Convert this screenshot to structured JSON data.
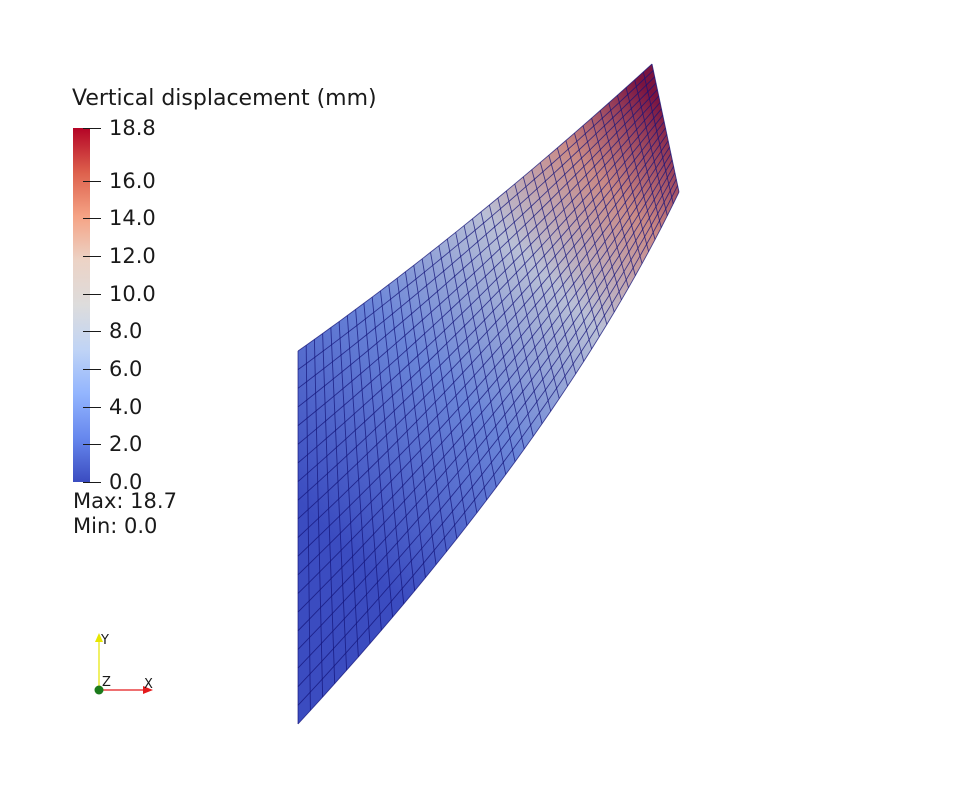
{
  "legend": {
    "title": "Vertical displacement (mm)",
    "ticks": [
      "18.8",
      "16.0",
      "14.0",
      "12.0",
      "10.0",
      "8.0",
      "6.0",
      "4.0",
      "2.0",
      "0.0"
    ],
    "colormap": [
      "#b40426",
      "#dd604c",
      "#f5a385",
      "#ecd3c6",
      "#dddcdc",
      "#c0d4f5",
      "#93b5fe",
      "#6788ee",
      "#3b4cc0"
    ],
    "max_label": "Max: 18.7",
    "min_label": "Min: 0.0"
  },
  "orientation_axes": {
    "x_label": "X",
    "y_label": "Y",
    "z_label": "Z",
    "x_color": "#e41a1c",
    "y_color": "#e6e600",
    "z_color": "#1b7a1b"
  },
  "mesh": {
    "low_color": "#3b4cc0",
    "mid_color": "#dddcdc",
    "high_color": "#b40426",
    "edge_color": "#14147a"
  }
}
